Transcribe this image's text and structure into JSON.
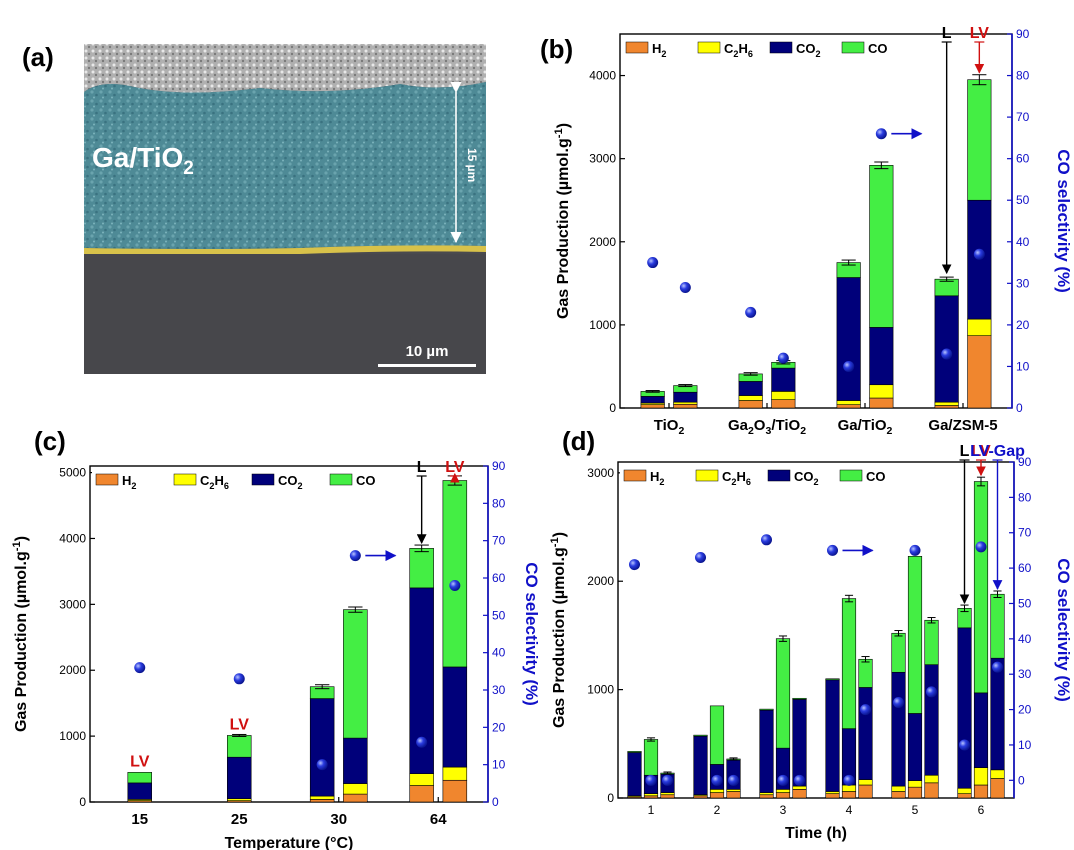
{
  "colors": {
    "H2": "#f0862e",
    "C2H6": "#ffff00",
    "CO2": "#00007a",
    "CO": "#44ee44",
    "axis_right": "#1010c8",
    "dot": "#2a3ce0",
    "lv": "#d01010"
  },
  "panel_a": {
    "label": "(a)",
    "sample_label": "Ga/TiO",
    "sample_sub": "2",
    "thickness_label": "15 µm",
    "scale_label": "10 µm"
  },
  "chart_data": [
    {
      "panel": "(b)",
      "type": "bar",
      "stacked": true,
      "xtick_labels": [
        {
          "parts": [
            "TiO",
            "2"
          ]
        },
        {
          "parts": [
            "Ga",
            "2",
            "O",
            "3",
            "/TiO",
            "2"
          ]
        },
        {
          "parts": [
            "Ga/TiO",
            "2"
          ]
        },
        {
          "parts": [
            "Ga/ZSM-5"
          ]
        }
      ],
      "ylabel": "Gas Production (µmol.g-1)",
      "ylabel_parts": [
        "Gas Production (µmol.g",
        "-1",
        ")"
      ],
      "y2label": "CO selectivity (%)",
      "ylim": [
        0,
        4500
      ],
      "y2lim": [
        0,
        90
      ],
      "yticks": [
        0,
        1000,
        2000,
        3000,
        4000
      ],
      "y2ticks": [
        0,
        10,
        20,
        30,
        40,
        50,
        60,
        70,
        80,
        90
      ],
      "legend": [
        {
          "key": "H2",
          "parts": [
            "H",
            "2"
          ]
        },
        {
          "key": "C2H6",
          "parts": [
            "C",
            "2",
            "H",
            "6"
          ]
        },
        {
          "key": "CO2",
          "parts": [
            "CO",
            "2"
          ]
        },
        {
          "key": "CO",
          "parts": [
            "CO"
          ]
        }
      ],
      "legend_position": "top-left",
      "bars": [
        {
          "x": 1,
          "H2": 40,
          "C2H6": 20,
          "CO2": 80,
          "CO": 60,
          "err": 10
        },
        {
          "x": 2,
          "H2": 45,
          "C2H6": 25,
          "CO2": 120,
          "CO": 80,
          "err": 12
        },
        {
          "x": 4,
          "H2": 90,
          "C2H6": 60,
          "CO2": 170,
          "CO": 90,
          "err": 15
        },
        {
          "x": 5,
          "H2": 100,
          "C2H6": 100,
          "CO2": 280,
          "CO": 70,
          "err": 20
        },
        {
          "x": 7,
          "H2": 40,
          "C2H6": 50,
          "CO2": 1480,
          "CO": 180,
          "err": 30
        },
        {
          "x": 8,
          "H2": 120,
          "C2H6": 160,
          "CO2": 690,
          "CO": 1950,
          "err": 40
        },
        {
          "x": 10,
          "H2": 30,
          "C2H6": 40,
          "CO2": 1280,
          "CO": 200,
          "err": 25
        },
        {
          "x": 11,
          "H2": 870,
          "C2H6": 200,
          "CO2": 1430,
          "CO": 1450,
          "err": 60
        }
      ],
      "xlim": [
        0,
        12
      ],
      "xtick_positions": [
        1.5,
        4.5,
        7.5,
        10.5
      ],
      "selectivity": [
        {
          "x": 1,
          "y": 35
        },
        {
          "x": 2,
          "y": 29
        },
        {
          "x": 4,
          "y": 23
        },
        {
          "x": 5,
          "y": 12
        },
        {
          "x": 7,
          "y": 10
        },
        {
          "x": 8,
          "y": 66
        },
        {
          "x": 10,
          "y": 13
        },
        {
          "x": 11,
          "y": 37
        }
      ],
      "arrow_right": {
        "x": 8,
        "y": 66
      },
      "annotations": [
        {
          "text": "L",
          "x": 10,
          "color": "#000"
        },
        {
          "text": "LV",
          "x": 11,
          "color": "#d01010"
        }
      ]
    },
    {
      "panel": "(c)",
      "type": "bar",
      "stacked": true,
      "xtick_labels": [
        {
          "parts": [
            "15"
          ]
        },
        {
          "parts": [
            "25"
          ]
        },
        {
          "parts": [
            "30"
          ]
        },
        {
          "parts": [
            "64"
          ]
        }
      ],
      "xlabel": "Temperature (°C)",
      "ylabel": "Gas Production (µmol.g-1)",
      "ylabel_parts": [
        "Gas Production (µmol.g",
        "-1",
        ")"
      ],
      "y2label": "CO selectivity (%)",
      "ylim": [
        0,
        5100
      ],
      "y2lim": [
        0,
        90
      ],
      "yticks": [
        0,
        1000,
        2000,
        3000,
        4000,
        5000
      ],
      "y2ticks": [
        0,
        10,
        20,
        30,
        40,
        50,
        60,
        70,
        80,
        90
      ],
      "legend": [
        {
          "key": "H2",
          "parts": [
            "H",
            "2"
          ]
        },
        {
          "key": "C2H6",
          "parts": [
            "C",
            "2",
            "H",
            "6"
          ]
        },
        {
          "key": "CO2",
          "parts": [
            "CO",
            "2"
          ]
        },
        {
          "key": "CO",
          "parts": [
            "CO"
          ]
        }
      ],
      "legend_position": "top-left",
      "bars": [
        {
          "x": 1.5,
          "H2": 20,
          "C2H6": 20,
          "CO2": 250,
          "CO": 160
        },
        {
          "x": 4.5,
          "H2": 20,
          "C2H6": 30,
          "CO2": 630,
          "CO": 330,
          "err": 15
        },
        {
          "x": 7,
          "H2": 40,
          "C2H6": 50,
          "CO2": 1480,
          "CO": 180,
          "err": 30
        },
        {
          "x": 8,
          "H2": 120,
          "C2H6": 160,
          "CO2": 690,
          "CO": 1950,
          "err": 40
        },
        {
          "x": 10,
          "H2": 250,
          "C2H6": 180,
          "CO2": 2820,
          "CO": 600,
          "err": 50
        },
        {
          "x": 11,
          "H2": 330,
          "C2H6": 200,
          "CO2": 1520,
          "CO": 2830,
          "err": 70
        }
      ],
      "xlim": [
        0,
        12
      ],
      "xtick_positions": [
        1.5,
        4.5,
        7.5,
        10.5
      ],
      "selectivity": [
        {
          "x": 1.5,
          "y": 36
        },
        {
          "x": 4.5,
          "y": 33
        },
        {
          "x": 7,
          "y": 10
        },
        {
          "x": 8,
          "y": 66
        },
        {
          "x": 10,
          "y": 16
        },
        {
          "x": 11,
          "y": 58
        }
      ],
      "arrow_right": {
        "x": 8,
        "y": 66
      },
      "annotations": [
        {
          "text": "LV",
          "x": 1.5,
          "color": "#d01010",
          "above": 480
        },
        {
          "text": "LV",
          "x": 4.5,
          "color": "#d01010",
          "above": 1040
        },
        {
          "text": "L",
          "x": 10,
          "color": "#000",
          "top": true
        },
        {
          "text": "LV",
          "x": 11,
          "color": "#d01010",
          "top": true
        }
      ]
    },
    {
      "panel": "(d)",
      "type": "bar",
      "stacked": true,
      "xtick_labels": [
        {
          "parts": [
            "1"
          ]
        },
        {
          "parts": [
            "2"
          ]
        },
        {
          "parts": [
            "3"
          ]
        },
        {
          "parts": [
            "4"
          ]
        },
        {
          "parts": [
            "5"
          ]
        },
        {
          "parts": [
            "6"
          ]
        }
      ],
      "xlabel": "Time (h)",
      "ylabel": "Gas Production (µmol.g-1)",
      "ylabel_parts": [
        "Gas Production (µmol.g",
        "-1",
        ")"
      ],
      "y2label": "CO selectivity (%)",
      "ylim": [
        0,
        3100
      ],
      "y2lim": [
        -5,
        90
      ],
      "yticks": [
        0,
        1000,
        2000,
        3000
      ],
      "y2ticks": [
        0,
        10,
        20,
        30,
        40,
        50,
        60,
        70,
        80,
        90
      ],
      "legend": [
        {
          "key": "H2",
          "parts": [
            "H",
            "2"
          ]
        },
        {
          "key": "C2H6",
          "parts": [
            "C",
            "2",
            "H",
            "6"
          ]
        },
        {
          "key": "CO2",
          "parts": [
            "CO",
            "2"
          ]
        },
        {
          "key": "CO",
          "parts": [
            "CO"
          ]
        }
      ],
      "legend_position": "top-left",
      "bars": [
        {
          "x": 1,
          "H2": 10,
          "C2H6": 10,
          "CO2": 400,
          "CO": 10
        },
        {
          "x": 2,
          "H2": 20,
          "C2H6": 20,
          "CO2": 170,
          "CO": 330,
          "err": 15
        },
        {
          "x": 3,
          "H2": 30,
          "C2H6": 20,
          "CO2": 170,
          "CO": 10,
          "err": 10
        },
        {
          "x": 5,
          "H2": 20,
          "C2H6": 10,
          "CO2": 540,
          "CO": 10
        },
        {
          "x": 6,
          "H2": 50,
          "C2H6": 30,
          "CO2": 230,
          "CO": 540
        },
        {
          "x": 7,
          "H2": 60,
          "C2H6": 20,
          "CO2": 270,
          "CO": 10,
          "err": 10
        },
        {
          "x": 9,
          "H2": 30,
          "C2H6": 20,
          "CO2": 760,
          "CO": 10
        },
        {
          "x": 10,
          "H2": 50,
          "C2H6": 30,
          "CO2": 380,
          "CO": 1010,
          "err": 25
        },
        {
          "x": 11,
          "H2": 80,
          "C2H6": 30,
          "CO2": 800,
          "CO": 10
        },
        {
          "x": 13,
          "H2": 40,
          "C2H6": 20,
          "CO2": 1030,
          "CO": 10
        },
        {
          "x": 14,
          "H2": 60,
          "C2H6": 60,
          "CO2": 520,
          "CO": 1200,
          "err": 30
        },
        {
          "x": 15,
          "H2": 120,
          "C2H6": 50,
          "CO2": 850,
          "CO": 260,
          "err": 25
        },
        {
          "x": 17,
          "H2": 60,
          "C2H6": 50,
          "CO2": 1050,
          "CO": 360,
          "err": 25
        },
        {
          "x": 18,
          "H2": 100,
          "C2H6": 60,
          "CO2": 620,
          "CO": 1450
        },
        {
          "x": 19,
          "H2": 140,
          "C2H6": 70,
          "CO2": 1020,
          "CO": 410,
          "err": 25
        },
        {
          "x": 21,
          "H2": 40,
          "C2H6": 50,
          "CO2": 1480,
          "CO": 180,
          "err": 30
        },
        {
          "x": 22,
          "H2": 120,
          "C2H6": 160,
          "CO2": 690,
          "CO": 1950,
          "err": 40
        },
        {
          "x": 23,
          "H2": 180,
          "C2H6": 80,
          "CO2": 1030,
          "CO": 590,
          "err": 30
        }
      ],
      "xlim": [
        0,
        24
      ],
      "xtick_positions": [
        2,
        6,
        10,
        14,
        18,
        22
      ],
      "selectivity": [
        {
          "x": 1,
          "y": 61
        },
        {
          "x": 2,
          "y": 0
        },
        {
          "x": 3,
          "y": 0
        },
        {
          "x": 5,
          "y": 63
        },
        {
          "x": 6,
          "y": 0
        },
        {
          "x": 7,
          "y": 0
        },
        {
          "x": 9,
          "y": 68
        },
        {
          "x": 10,
          "y": 0
        },
        {
          "x": 11,
          "y": 0
        },
        {
          "x": 13,
          "y": 65
        },
        {
          "x": 14,
          "y": 0
        },
        {
          "x": 15,
          "y": 20
        },
        {
          "x": 17,
          "y": 22
        },
        {
          "x": 18,
          "y": 65
        },
        {
          "x": 19,
          "y": 25
        },
        {
          "x": 21,
          "y": 10
        },
        {
          "x": 22,
          "y": 66
        },
        {
          "x": 23,
          "y": 32
        }
      ],
      "arrow_right": {
        "x": 13,
        "y": 65
      },
      "annotations": [
        {
          "text": "L",
          "x": 21,
          "color": "#000",
          "top": true
        },
        {
          "text": "LV",
          "x": 22,
          "color": "#d01010",
          "top": true
        },
        {
          "text": "LV-Gap",
          "x": 23,
          "color": "#1010c8",
          "top": true
        }
      ]
    }
  ]
}
